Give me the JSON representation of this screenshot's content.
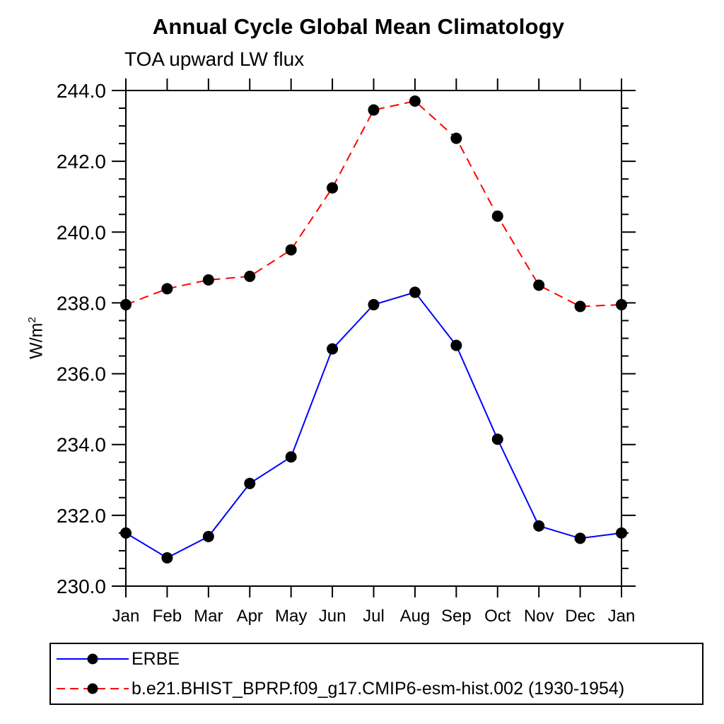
{
  "chart_data": {
    "type": "line",
    "title": "Annual Cycle Global Mean Climatology",
    "subtitle": "TOA upward LW flux",
    "ylabel": {
      "base": "W/m",
      "exp": "2"
    },
    "ylim": [
      230.0,
      244.0
    ],
    "ytick_interval": 2.0,
    "ytick_minor_interval": 0.5,
    "ytick_values": [
      230.0,
      232.0,
      234.0,
      236.0,
      238.0,
      240.0,
      242.0,
      244.0
    ],
    "ytick_labels": [
      "230.0",
      "232.0",
      "234.0",
      "236.0",
      "238.0",
      "240.0",
      "242.0",
      "244.0"
    ],
    "categories": [
      "Jan",
      "Feb",
      "Mar",
      "Apr",
      "May",
      "Jun",
      "Jul",
      "Aug",
      "Sep",
      "Oct",
      "Nov",
      "Dec",
      "Jan"
    ],
    "grid": false,
    "legend_position": "bottom-left",
    "series": [
      {
        "name": "ERBE",
        "color": "#0000ff",
        "line_style": "solid",
        "marker": "circle",
        "marker_color": "#000000",
        "values": [
          231.5,
          230.8,
          231.4,
          232.9,
          233.65,
          236.7,
          237.95,
          238.3,
          236.8,
          234.15,
          231.7,
          231.35,
          231.5
        ]
      },
      {
        "name": "b.e21.BHIST_BPRP.f09_g17.CMIP6-esm-hist.002 (1930-1954)",
        "color": "#ff0000",
        "line_style": "dashed",
        "marker": "circle",
        "marker_color": "#000000",
        "values": [
          237.95,
          238.4,
          238.65,
          238.75,
          239.5,
          241.25,
          243.45,
          243.7,
          242.65,
          240.45,
          238.5,
          237.9,
          237.95
        ]
      }
    ]
  }
}
